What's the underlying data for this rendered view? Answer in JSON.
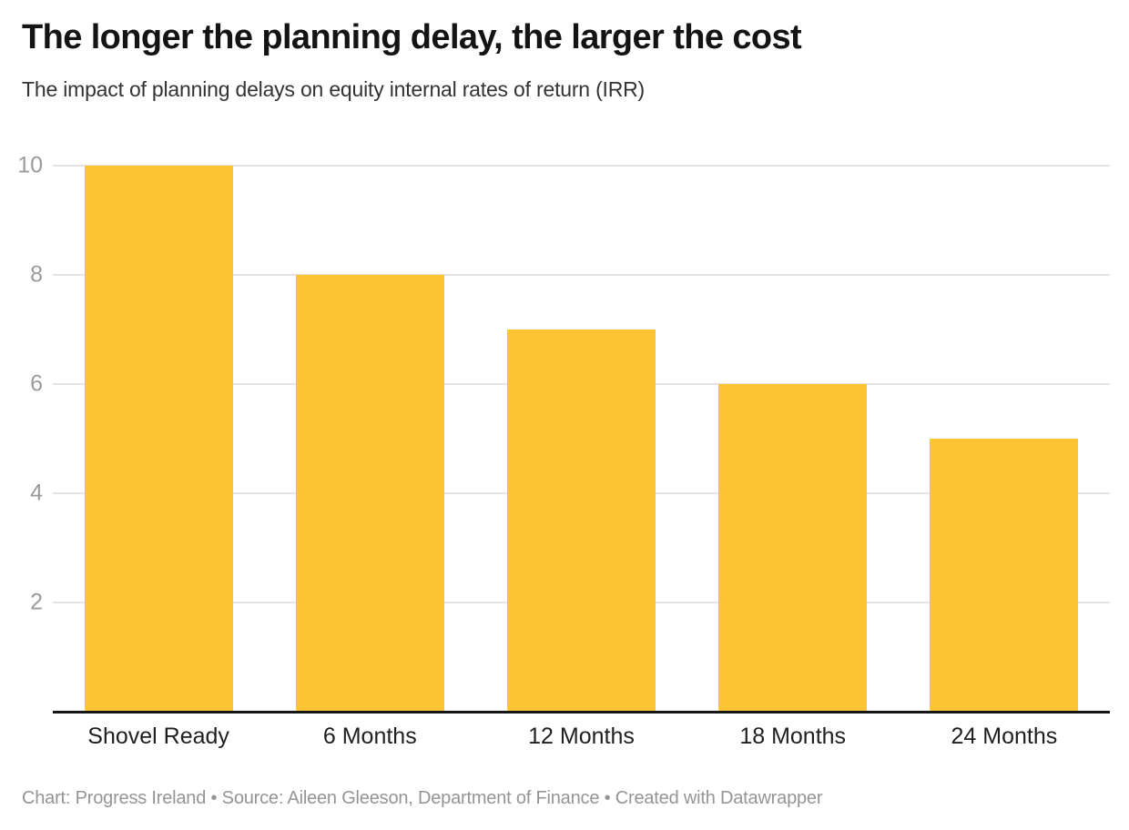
{
  "header": {
    "title": "The longer the planning delay, the larger the cost",
    "subtitle": "The impact of planning delays on equity internal rates of return (IRR)"
  },
  "chart_data": {
    "type": "bar",
    "title": "The longer the planning delay, the larger the cost",
    "subtitle": "The impact of planning delays on equity internal rates of return (IRR)",
    "categories": [
      "Shovel Ready",
      "6 Months",
      "12 Months",
      "18 Months",
      "24 Months"
    ],
    "values": [
      10,
      8,
      7,
      6,
      5
    ],
    "xlabel": "",
    "ylabel": "",
    "ylim": [
      0,
      10
    ],
    "yticks": [
      2,
      4,
      6,
      8,
      10
    ],
    "grid": true,
    "legend": false,
    "bar_color": "#fdc433"
  },
  "colors": {
    "bar": "#fdc433",
    "gridline": "#e4e4e4",
    "axis_line": "#151515",
    "y_tick_label": "#9b9b9b",
    "x_axis_label": "#1f1f1f",
    "title": "#141414",
    "subtitle": "#333333",
    "footer": "#959595",
    "background": "#ffffff"
  },
  "footer": {
    "text": "Chart: Progress Ireland • Source: Aileen Gleeson, Department of Finance • Created with Datawrapper"
  }
}
